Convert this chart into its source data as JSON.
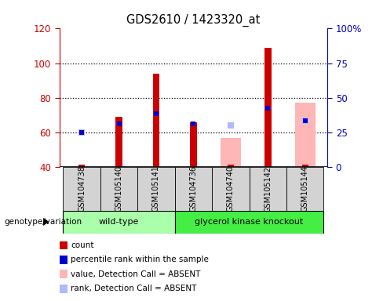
{
  "title": "GDS2610 / 1423320_at",
  "samples": [
    "GSM104738",
    "GSM105140",
    "GSM105141",
    "GSM104736",
    "GSM104740",
    "GSM105142",
    "GSM105144"
  ],
  "ylim_left": [
    40,
    120
  ],
  "ylim_right": [
    0,
    100
  ],
  "yticks_left": [
    40,
    60,
    80,
    100,
    120
  ],
  "yticks_right": [
    0,
    25,
    50,
    75,
    100
  ],
  "yticklabels_right": [
    "0",
    "25",
    "50",
    "75",
    "100%"
  ],
  "bar_bottom": 40,
  "red_bars": {
    "GSM104738": null,
    "GSM105140": 69,
    "GSM105141": 94,
    "GSM104736": 66,
    "GSM104740": null,
    "GSM105142": 109,
    "GSM105144": null
  },
  "blue_squares": {
    "GSM104738": 60,
    "GSM105140": 65,
    "GSM105141": 71,
    "GSM104736": 65,
    "GSM104740": null,
    "GSM105142": 74,
    "GSM105144": 67
  },
  "pink_bars": {
    "GSM104738": null,
    "GSM105140": null,
    "GSM105141": null,
    "GSM104736": null,
    "GSM104740": 57,
    "GSM105142": null,
    "GSM105144": 77
  },
  "light_blue_squares": {
    "GSM104738": 60,
    "GSM105140": null,
    "GSM105141": null,
    "GSM104736": null,
    "GSM104740": 64,
    "GSM105142": null,
    "GSM105144": 67
  },
  "red_small_marks": [
    "GSM104738",
    "GSM104740",
    "GSM105144"
  ],
  "colors": {
    "red_bar": "#cc0000",
    "blue_square": "#0000cc",
    "pink_bar": "#ffb6b6",
    "light_blue_square": "#b0b8ff",
    "left_tick": "#cc0000",
    "right_tick": "#0000bb"
  },
  "wt_color": "#aaffaa",
  "gk_color": "#44ee44",
  "sample_box_color": "#d3d3d3",
  "legend": [
    {
      "label": "count",
      "color": "#cc0000"
    },
    {
      "label": "percentile rank within the sample",
      "color": "#0000cc"
    },
    {
      "label": "value, Detection Call = ABSENT",
      "color": "#ffb6b6"
    },
    {
      "label": "rank, Detection Call = ABSENT",
      "color": "#b0b8ff"
    }
  ]
}
